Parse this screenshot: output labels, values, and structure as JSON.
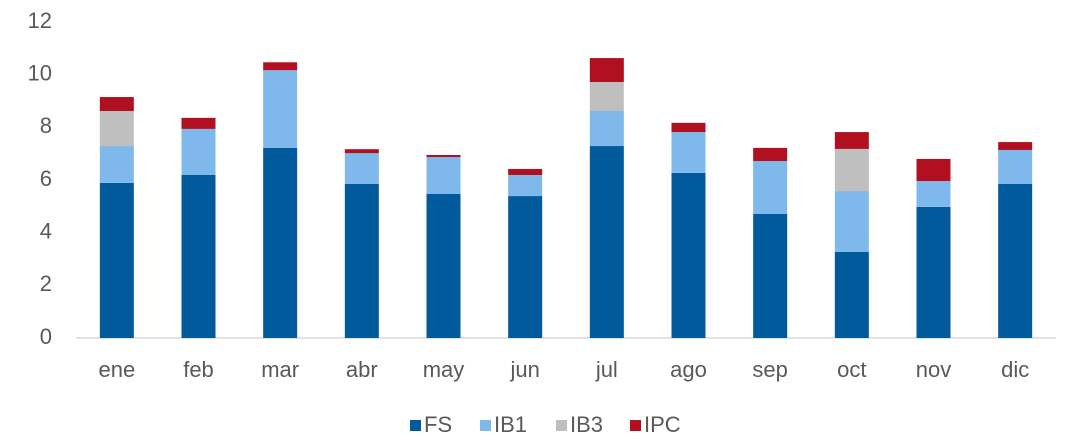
{
  "chart_data": {
    "type": "stacked_bar",
    "categories": [
      "ene",
      "feb",
      "mar",
      "abr",
      "may",
      "jun",
      "jul",
      "ago",
      "sep",
      "oct",
      "nov",
      "dic"
    ],
    "series": [
      {
        "name": "FS",
        "color": "#005a9b",
        "values": [
          5.89,
          6.19,
          7.22,
          5.85,
          5.47,
          5.39,
          7.29,
          6.27,
          4.71,
          3.27,
          4.98,
          5.85
        ]
      },
      {
        "name": "IB1",
        "color": "#7fb8eb",
        "values": [
          1.4,
          1.75,
          2.95,
          1.17,
          1.4,
          0.8,
          1.33,
          1.55,
          2.01,
          2.31,
          0.98,
          1.29
        ]
      },
      {
        "name": "IB3",
        "color": "#bfbfbf",
        "values": [
          1.33,
          0,
          0,
          0,
          0,
          0,
          1.1,
          0,
          0,
          1.6,
          0,
          0
        ]
      },
      {
        "name": "IPC",
        "color": "#b01020",
        "values": [
          0.53,
          0.42,
          0.3,
          0.15,
          0.08,
          0.23,
          0.91,
          0.35,
          0.5,
          0.64,
          0.84,
          0.3
        ]
      }
    ],
    "ylim": [
      0,
      12
    ],
    "yticks": [
      0,
      2,
      4,
      6,
      8,
      10,
      12
    ],
    "grid": false,
    "legend": "bottom"
  }
}
